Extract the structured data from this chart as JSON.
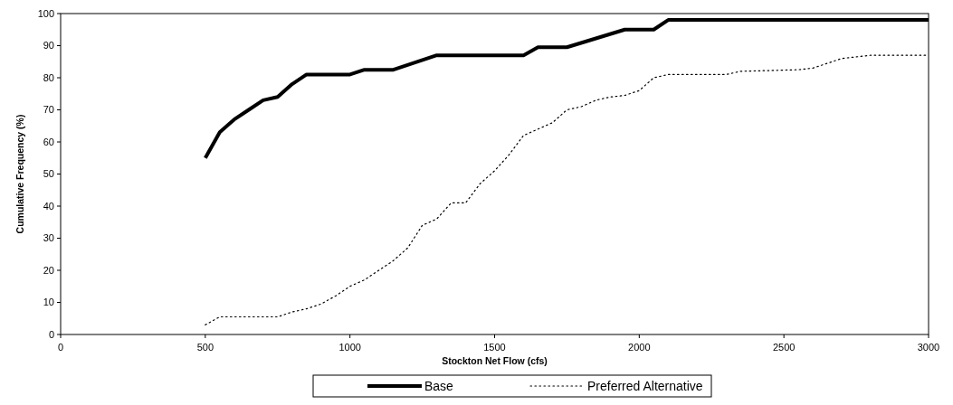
{
  "chart_data": {
    "type": "line",
    "xlabel": "Stockton Net Flow (cfs)",
    "ylabel": "Cumulative Frequency (%)",
    "xlim": [
      0,
      3000
    ],
    "xticks": [
      0,
      500,
      1000,
      1500,
      2000,
      2500,
      3000
    ],
    "ylim": [
      0,
      100
    ],
    "yticks": [
      0,
      10,
      20,
      30,
      40,
      50,
      60,
      70,
      80,
      90,
      100
    ],
    "grid": false,
    "legend": "bottom",
    "series": [
      {
        "name": "Base",
        "color": "#000000",
        "line_style": "solid",
        "x": [
          500,
          550,
          600,
          650,
          700,
          750,
          800,
          850,
          1000,
          1050,
          1150,
          1300,
          1600,
          1650,
          1750,
          1950,
          2050,
          2100,
          3000
        ],
        "values": [
          55,
          63,
          67,
          70,
          73,
          74,
          78,
          81,
          81,
          82.5,
          82.5,
          87,
          87,
          89.5,
          89.5,
          95,
          95,
          98,
          98
        ]
      },
      {
        "name": "Preferred Alternative",
        "color": "#000000",
        "line_style": "dotted",
        "x": [
          500,
          550,
          750,
          800,
          850,
          900,
          950,
          1000,
          1050,
          1100,
          1150,
          1200,
          1250,
          1300,
          1350,
          1400,
          1450,
          1500,
          1550,
          1600,
          1650,
          1700,
          1750,
          1800,
          1850,
          1900,
          1950,
          2000,
          2050,
          2100,
          2300,
          2350,
          2550,
          2600,
          2700,
          2800,
          3000
        ],
        "values": [
          3,
          5.5,
          5.5,
          7,
          8,
          9.5,
          12,
          15,
          17,
          20,
          23,
          27,
          34,
          36,
          41,
          41,
          47,
          51,
          56,
          62,
          64,
          66,
          70,
          71,
          73,
          74,
          74.5,
          76,
          80,
          81,
          81,
          82,
          82.5,
          83,
          86,
          87,
          87
        ]
      }
    ]
  }
}
